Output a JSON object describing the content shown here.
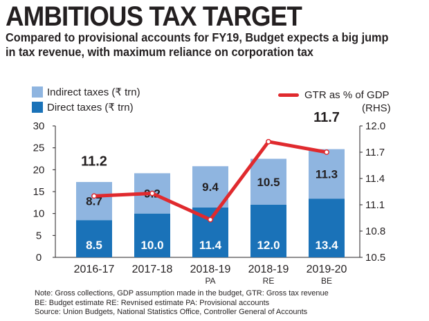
{
  "title": "AMBITIOUS TAX TARGET",
  "subtitle": "Compared to provisional accounts for FY19, Budget expects a big jump in tax revenue, with maximum reliance on corporation tax",
  "legend": {
    "indirect": "Indirect taxes (₹ trn)",
    "direct": "Direct taxes (₹ trn)",
    "gtr": "GTR as % of GDP",
    "rhs": "(RHS)"
  },
  "colors": {
    "direct": "#1a72b8",
    "indirect": "#8fb5e0",
    "gtr_line": "#e02a2e",
    "axis_text": "#231f20"
  },
  "chart_data": {
    "type": "bar",
    "stacked": true,
    "categories": [
      {
        "line1": "2016-17",
        "line2": ""
      },
      {
        "line1": "2017-18",
        "line2": ""
      },
      {
        "line1": "2018-19",
        "line2": "PA"
      },
      {
        "line1": "2018-19",
        "line2": "RE"
      },
      {
        "line1": "2019-20",
        "line2": "BE"
      }
    ],
    "series": [
      {
        "name": "Direct taxes (₹ trn)",
        "values": [
          8.5,
          10.0,
          11.4,
          12.0,
          13.4
        ],
        "labels": [
          "8.5",
          "10.0",
          "11.4",
          "12.0",
          "13.4"
        ]
      },
      {
        "name": "Indirect taxes (₹ trn)",
        "values": [
          8.7,
          9.2,
          9.4,
          10.5,
          11.3
        ],
        "labels": [
          "8.7",
          "9.2",
          "9.4",
          "10.5",
          "11.3"
        ]
      }
    ],
    "line_series": {
      "name": "GTR as % of GDP",
      "axis": "right",
      "values": [
        11.2,
        11.23,
        10.93,
        11.82,
        11.7
      ],
      "annotations": [
        {
          "index": 0,
          "text": "11.2"
        },
        {
          "index": 4,
          "text": "11.7"
        }
      ]
    },
    "left_axis": {
      "min": 0,
      "max": 30,
      "ticks": [
        "0",
        "5",
        "10",
        "15",
        "20",
        "25",
        "30"
      ]
    },
    "right_axis": {
      "min": 10.5,
      "max": 12.0,
      "ticks": [
        "10.5",
        "10.8",
        "11.1",
        "11.4",
        "11.7",
        "12.0"
      ]
    }
  },
  "notes": [
    "Note: Gross collections, GDP assumption made in the budget, GTR: Gross tax revenue",
    "BE: Budget estimate RE: Revnised estimate PA: Provisional accounts",
    "Source: Union Budgets, National Statistics Office, Controller General of Accounts"
  ]
}
